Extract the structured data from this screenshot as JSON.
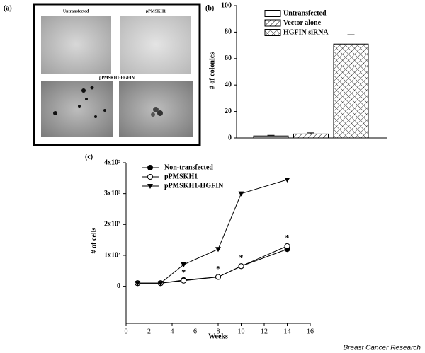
{
  "image_panel": {
    "label": "(a)",
    "captions": [
      "Untransfected",
      "pPMSKH1",
      "pPMSKH1-HGFIN"
    ]
  },
  "footer": "Breast Cancer Research",
  "chart_data": [
    {
      "type": "bar",
      "panel_label": "(b)",
      "y_label": "# of colonies",
      "ylim": [
        0,
        100
      ],
      "yticks": [
        0,
        20,
        40,
        60,
        80,
        100
      ],
      "series": [
        {
          "name": "Untransfected",
          "pattern": "none",
          "values": [
            1.5
          ],
          "errors": [
            0.5
          ]
        },
        {
          "name": "Vector alone",
          "pattern": "diagonal",
          "values": [
            3
          ],
          "errors": [
            0.8
          ]
        },
        {
          "name": "HGFIN siRNA",
          "pattern": "crosshatch",
          "values": [
            71
          ],
          "errors": [
            7
          ]
        }
      ]
    },
    {
      "type": "line",
      "panel_label": "(c)",
      "x_label": "Weeks",
      "y_label": "# of cells",
      "x": [
        1,
        3,
        5,
        8,
        10,
        14
      ],
      "xlim": [
        0,
        16
      ],
      "xticks": [
        0,
        2,
        4,
        6,
        8,
        10,
        12,
        14,
        16
      ],
      "ylim": [
        -1200,
        4000
      ],
      "yticks": [
        0,
        {
          "value": 1000,
          "label": "1x10³"
        },
        {
          "value": 2000,
          "label": "2x10³"
        },
        {
          "value": 3000,
          "label": "3x10³"
        },
        {
          "value": 4000,
          "label": "4x10³"
        }
      ],
      "series": [
        {
          "name": "Non-transfected",
          "marker": "circle-filled",
          "values": [
            100,
            100,
            200,
            300,
            650,
            1200
          ]
        },
        {
          "name": "pPMSKH1",
          "marker": "circle-open",
          "values": [
            100,
            100,
            180,
            300,
            650,
            1300
          ]
        },
        {
          "name": "pPMSKH1-HGFIN",
          "marker": "triangle-down",
          "values": [
            100,
            100,
            700,
            1200,
            3000,
            3450
          ]
        }
      ],
      "annotations": [
        "*",
        "*",
        "*",
        "*"
      ]
    }
  ]
}
